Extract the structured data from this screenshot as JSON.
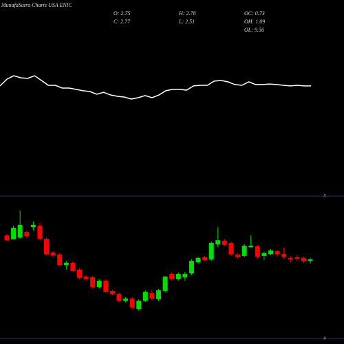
{
  "title": "MunafaSutra Charts USA ENIC",
  "stats": [
    [
      "O: 2.75",
      "C: 2.77"
    ],
    [
      "H: 2.78",
      "L: 2.51"
    ],
    [
      "OC: 0.73",
      "OH: 1.09",
      "OL: 9.56"
    ]
  ],
  "chart_data": [
    {
      "type": "line",
      "color": "#ffffff",
      "ylim": [
        0,
        100
      ],
      "values": [
        55.4,
        58.9,
        60.7,
        59.6,
        59.3,
        60.7,
        58.2,
        55.7,
        55.7,
        54.3,
        54.3,
        53.6,
        52.9,
        52.5,
        51.1,
        52.1,
        50.7,
        50.0,
        49.6,
        48.6,
        49.3,
        50.4,
        49.3,
        50.7,
        52.9,
        53.6,
        53.6,
        53.2,
        55.4,
        55.7,
        55.7,
        57.9,
        58.2,
        57.5,
        56.1,
        55.7,
        57.5,
        56.1,
        56.1,
        56.4,
        56.1,
        55.7,
        55.4,
        55.7,
        55.4,
        55.4
      ]
    },
    {
      "type": "candlestick",
      "up_color": "#00e000",
      "down_color": "#ff0000",
      "grid_color": "#2c2c66",
      "ylim": [
        0,
        5
      ],
      "yticks": [
        0,
        5
      ],
      "open": [
        3.62,
        3.48,
        3.55,
        3.74,
        3.91,
        3.96,
        3.5,
        3.02,
        2.95,
        2.58,
        2.66,
        2.42,
        2.17,
        2.15,
        1.81,
        2.03,
        1.67,
        1.57,
        1.33,
        1.4,
        1.04,
        1.33,
        1.59,
        1.38,
        1.67,
        2.27,
        2.08,
        2.15,
        2.29,
        2.68,
        2.85,
        2.78,
        3.31,
        3.43,
        3.36,
        2.95,
        2.9,
        3.21,
        3.24,
        2.9,
        2.97,
        3.07,
        2.97,
        2.83,
        2.85,
        2.83,
        2.73
      ],
      "high": [
        3.67,
        3.96,
        4.49,
        3.79,
        4.11,
        4.06,
        3.55,
        3.07,
        3.0,
        2.73,
        2.71,
        2.47,
        2.22,
        2.2,
        2.08,
        2.08,
        1.71,
        1.62,
        1.45,
        1.45,
        1.38,
        1.69,
        1.71,
        1.74,
        2.2,
        2.32,
        2.32,
        2.34,
        2.78,
        2.87,
        2.9,
        3.41,
        3.91,
        3.48,
        3.41,
        3.0,
        3.31,
        3.62,
        3.29,
        3.05,
        3.14,
        3.12,
        3.19,
        2.9,
        2.92,
        2.87,
        2.83
      ],
      "low": [
        3.43,
        3.48,
        3.5,
        3.55,
        3.79,
        3.45,
        2.92,
        2.9,
        2.56,
        2.42,
        2.34,
        2.08,
        2.03,
        1.76,
        1.76,
        1.59,
        1.52,
        1.28,
        1.28,
        1.04,
        0.97,
        1.28,
        1.33,
        1.33,
        1.62,
        2.03,
        2.03,
        2.03,
        2.24,
        2.63,
        2.71,
        2.73,
        3.21,
        3.24,
        2.9,
        2.8,
        2.85,
        3.19,
        2.8,
        2.75,
        2.92,
        2.87,
        2.8,
        2.68,
        2.71,
        2.66,
        2.63
      ],
      "close": [
        3.45,
        3.89,
        3.99,
        3.6,
        3.99,
        3.5,
        2.95,
        2.92,
        2.58,
        2.66,
        2.37,
        2.13,
        2.08,
        1.81,
        2.03,
        1.64,
        1.57,
        1.33,
        1.4,
        1.09,
        1.33,
        1.64,
        1.4,
        1.69,
        2.17,
        2.08,
        2.27,
        2.27,
        2.73,
        2.83,
        2.75,
        3.36,
        3.45,
        3.29,
        2.95,
        2.87,
        3.26,
        3.26,
        2.87,
        3.0,
        3.09,
        2.95,
        2.87,
        2.78,
        2.8,
        2.71,
        2.78
      ]
    }
  ]
}
